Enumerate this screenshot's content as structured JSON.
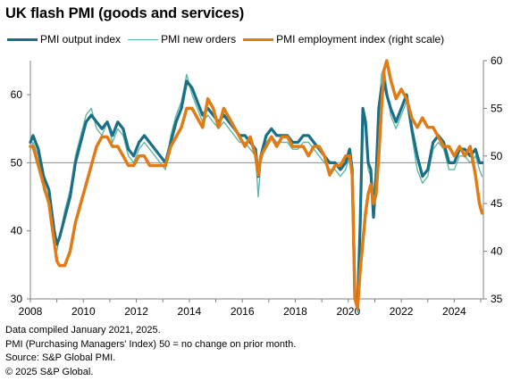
{
  "title": "UK flash PMI (goods and services)",
  "legend": [
    {
      "label": "PMI output index",
      "color": "#1a6e86",
      "width": 3.5
    },
    {
      "label": "PMI new orders",
      "color": "#5fb8a6",
      "width": 1.5
    },
    {
      "label": "PMI employment index (right scale)",
      "color": "#e07c16",
      "width": 3.5
    }
  ],
  "footer": {
    "line1": "Data compiled January 2021, 2025.",
    "line2": "PMI (Purchasing Managers' Index) 50 = no change on prior month.",
    "line3": "Source: S&P Global PMI.",
    "line4": "© 2025 S&P Global."
  },
  "chart_data": {
    "type": "line",
    "title": "UK flash PMI (goods and services)",
    "x_range": [
      2008,
      2025.1
    ],
    "x_ticks": [
      "2008",
      "2010",
      "2012",
      "2014",
      "2016",
      "2018",
      "2020",
      "2022",
      "2024"
    ],
    "y_left": {
      "range": [
        30,
        65
      ],
      "ticks": [
        "30",
        "40",
        "50",
        "60"
      ]
    },
    "y_right": {
      "range": [
        35,
        60
      ],
      "ticks": [
        "35",
        "40",
        "45",
        "50",
        "55",
        "60"
      ]
    },
    "reference_line": 50,
    "grid": false,
    "legend_position": "top",
    "series": [
      {
        "name": "PMI output index",
        "axis": "left",
        "color": "#1a6e86",
        "x": [
          2008.0,
          2008.1,
          2008.3,
          2008.5,
          2008.7,
          2008.8,
          2008.9,
          2009.0,
          2009.1,
          2009.3,
          2009.5,
          2009.7,
          2009.9,
          2010.1,
          2010.3,
          2010.5,
          2010.7,
          2010.9,
          2011.1,
          2011.3,
          2011.5,
          2011.7,
          2011.9,
          2012.1,
          2012.3,
          2012.5,
          2012.7,
          2012.9,
          2013.1,
          2013.3,
          2013.5,
          2013.7,
          2013.8,
          2013.9,
          2014.1,
          2014.3,
          2014.5,
          2014.7,
          2014.9,
          2015.1,
          2015.3,
          2015.5,
          2015.7,
          2015.9,
          2016.1,
          2016.3,
          2016.5,
          2016.6,
          2016.7,
          2016.9,
          2017.1,
          2017.3,
          2017.5,
          2017.7,
          2017.9,
          2018.1,
          2018.3,
          2018.5,
          2018.7,
          2018.9,
          2019.1,
          2019.3,
          2019.5,
          2019.7,
          2019.9,
          2020.05,
          2020.15,
          2020.25,
          2020.35,
          2020.45,
          2020.55,
          2020.65,
          2020.75,
          2020.85,
          2020.95,
          2021.05,
          2021.15,
          2021.25,
          2021.35,
          2021.45,
          2021.6,
          2021.8,
          2022.0,
          2022.2,
          2022.4,
          2022.6,
          2022.8,
          2023.0,
          2023.2,
          2023.4,
          2023.6,
          2023.8,
          2024.0,
          2024.2,
          2024.4,
          2024.6,
          2024.8,
          2024.95,
          2025.05
        ],
        "y": [
          53,
          54,
          52,
          48,
          46,
          43,
          40,
          38,
          39,
          42,
          45,
          50,
          53,
          56,
          57,
          56,
          55,
          56,
          54,
          56,
          55,
          52,
          51,
          53,
          54,
          53,
          52,
          51,
          50,
          53,
          56,
          58,
          60,
          62,
          61,
          59,
          57,
          58,
          57,
          56,
          57,
          56,
          55,
          54,
          54,
          53,
          52,
          48,
          51,
          54,
          55,
          54,
          54,
          54,
          53,
          53,
          54,
          54,
          53,
          52,
          51,
          50,
          50,
          49,
          50,
          52,
          49,
          30,
          29,
          41,
          58,
          56,
          50,
          49,
          42,
          48,
          58,
          61,
          62,
          60,
          58,
          56,
          58,
          60,
          55,
          51,
          48,
          49,
          53,
          54,
          53,
          50,
          50,
          52,
          52,
          51,
          52,
          50,
          50
        ]
      },
      {
        "name": "PMI new orders",
        "axis": "left",
        "color": "#5fb8a6",
        "x": [
          2008.0,
          2008.1,
          2008.3,
          2008.5,
          2008.7,
          2008.8,
          2008.9,
          2009.0,
          2009.1,
          2009.3,
          2009.5,
          2009.7,
          2009.9,
          2010.1,
          2010.3,
          2010.5,
          2010.7,
          2010.9,
          2011.1,
          2011.3,
          2011.5,
          2011.7,
          2011.9,
          2012.1,
          2012.3,
          2012.5,
          2012.7,
          2012.9,
          2013.1,
          2013.3,
          2013.5,
          2013.7,
          2013.8,
          2013.9,
          2014.1,
          2014.3,
          2014.5,
          2014.7,
          2014.9,
          2015.1,
          2015.3,
          2015.5,
          2015.7,
          2015.9,
          2016.1,
          2016.3,
          2016.5,
          2016.6,
          2016.7,
          2016.9,
          2017.1,
          2017.3,
          2017.5,
          2017.7,
          2017.9,
          2018.1,
          2018.3,
          2018.5,
          2018.7,
          2018.9,
          2019.1,
          2019.3,
          2019.5,
          2019.7,
          2019.9,
          2020.05,
          2020.15,
          2020.25,
          2020.35,
          2020.45,
          2020.55,
          2020.65,
          2020.75,
          2020.85,
          2020.95,
          2021.05,
          2021.15,
          2021.25,
          2021.35,
          2021.45,
          2021.6,
          2021.8,
          2022.0,
          2022.2,
          2022.4,
          2022.6,
          2022.8,
          2023.0,
          2023.2,
          2023.4,
          2023.6,
          2023.8,
          2024.0,
          2024.2,
          2024.4,
          2024.6,
          2024.8,
          2024.95,
          2025.05
        ],
        "y": [
          52,
          53,
          51,
          46,
          44,
          41,
          38,
          37,
          39,
          43,
          46,
          51,
          54,
          57,
          58,
          55,
          54,
          56,
          53,
          55,
          54,
          51,
          50,
          52,
          53,
          52,
          51,
          50,
          49,
          54,
          57,
          59,
          61,
          63,
          60,
          58,
          56,
          57,
          56,
          55,
          56,
          55,
          54,
          53,
          53,
          52,
          51,
          45,
          50,
          53,
          54,
          53,
          53,
          53,
          52,
          52,
          53,
          53,
          52,
          51,
          50,
          49,
          49,
          48,
          49,
          51,
          48,
          30,
          28,
          38,
          57,
          55,
          49,
          48,
          45,
          50,
          57,
          63,
          64,
          61,
          57,
          55,
          57,
          59,
          54,
          49,
          47,
          48,
          52,
          53,
          52,
          49,
          49,
          51,
          51,
          50,
          51,
          49,
          48
        ]
      },
      {
        "name": "PMI employment index (right scale)",
        "axis": "right",
        "color": "#e07c16",
        "x": [
          2008.0,
          2008.1,
          2008.3,
          2008.5,
          2008.7,
          2008.8,
          2008.9,
          2009.0,
          2009.1,
          2009.3,
          2009.5,
          2009.7,
          2009.9,
          2010.1,
          2010.3,
          2010.5,
          2010.7,
          2010.9,
          2011.1,
          2011.3,
          2011.5,
          2011.7,
          2011.9,
          2012.1,
          2012.3,
          2012.5,
          2012.7,
          2012.9,
          2013.1,
          2013.3,
          2013.5,
          2013.7,
          2013.8,
          2013.9,
          2014.1,
          2014.3,
          2014.5,
          2014.7,
          2014.9,
          2015.1,
          2015.3,
          2015.5,
          2015.7,
          2015.9,
          2016.1,
          2016.3,
          2016.5,
          2016.6,
          2016.7,
          2016.9,
          2017.1,
          2017.3,
          2017.5,
          2017.7,
          2017.9,
          2018.1,
          2018.3,
          2018.5,
          2018.7,
          2018.9,
          2019.1,
          2019.3,
          2019.5,
          2019.7,
          2019.9,
          2020.05,
          2020.15,
          2020.25,
          2020.35,
          2020.45,
          2020.55,
          2020.65,
          2020.75,
          2020.85,
          2020.95,
          2021.05,
          2021.15,
          2021.25,
          2021.35,
          2021.45,
          2021.6,
          2021.8,
          2022.0,
          2022.2,
          2022.4,
          2022.6,
          2022.8,
          2023.0,
          2023.2,
          2023.4,
          2023.6,
          2023.8,
          2024.0,
          2024.2,
          2024.4,
          2024.6,
          2024.8,
          2024.95,
          2025.05
        ],
        "y": [
          51,
          51,
          49,
          47,
          45,
          43,
          41,
          39,
          38.5,
          38.5,
          40,
          43,
          45,
          47,
          49,
          51,
          52,
          52,
          51,
          51,
          50,
          49,
          49,
          50,
          50,
          49,
          49,
          49,
          49,
          51,
          52,
          53,
          54,
          55,
          55,
          54,
          53,
          56,
          55,
          53,
          55,
          54,
          53,
          52,
          51,
          52,
          50,
          48,
          50,
          51,
          52,
          51,
          52,
          52,
          51,
          51,
          51,
          50,
          51,
          51,
          50,
          48,
          49,
          49,
          50,
          50,
          48,
          35,
          34,
          38,
          41,
          44,
          46,
          47,
          45,
          46,
          50,
          55,
          59,
          60,
          58,
          56,
          57,
          56,
          54,
          53,
          54,
          53,
          53,
          52,
          51,
          51,
          50,
          51,
          50,
          51,
          48,
          45,
          44
        ]
      }
    ]
  }
}
